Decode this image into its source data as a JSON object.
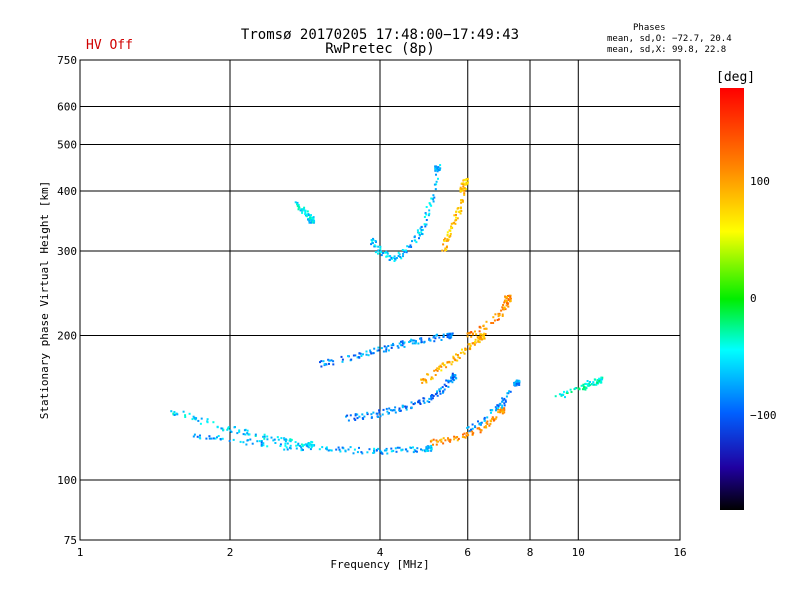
{
  "header": {
    "title_line1": "Tromsø 20170205 17:48:00−17:49:43",
    "title_line2": "RwPretec (8p)",
    "hv_status": "HV Off",
    "hv_color": "#d00000"
  },
  "phases_box": {
    "title": "Phases",
    "line1": "mean, sd,O: −72.7, 20.4",
    "line2": "mean, sd,X:  99.8, 22.8"
  },
  "colorbar": {
    "unit": "[deg]",
    "ticks": [
      "100",
      "0",
      "−100"
    ],
    "tick_values": [
      100,
      0,
      -100
    ],
    "range": [
      -180,
      180
    ],
    "colormap": "rainbow (black → purple → blue → cyan → green → yellow → orange → red)"
  },
  "chart_data": {
    "type": "scatter",
    "title": "Tromsø 20170205 17:48:00−17:49:43",
    "subtitle": "RwPretec (8p)",
    "xlabel": "Frequency [MHz]",
    "ylabel": "Stationary phase Virtual Height [km]",
    "x_scale": "log",
    "y_scale": "log",
    "xlim": [
      1,
      16
    ],
    "ylim": [
      75,
      750
    ],
    "x_ticks": [
      1,
      2,
      4,
      6,
      8,
      10,
      16
    ],
    "x_tick_labels": [
      "1",
      "2",
      "4",
      "6",
      "8",
      "10",
      "16"
    ],
    "y_ticks": [
      75,
      100,
      200,
      300,
      400,
      500,
      600,
      750
    ],
    "y_tick_labels": [
      "75",
      "100",
      "200",
      "300",
      "400",
      "500",
      "600",
      "750"
    ],
    "grid": true,
    "color_variable": "phase [deg]",
    "traces": [
      {
        "name": "",
        "phase": -75,
        "x": [
          1.65,
          2.0,
          2.5,
          3.0,
          3.5,
          4.0,
          4.5,
          5.0
        ],
        "y": [
          125,
          122,
          118,
          117,
          116,
          115,
          116,
          117
        ]
      },
      {
        "name": "",
        "phase": -60,
        "x": [
          1.5,
          1.7,
          2.0,
          2.3,
          2.6,
          2.9
        ],
        "y": [
          140,
          135,
          128,
          124,
          121,
          119
        ]
      },
      {
        "name": "",
        "phase": -90,
        "x": [
          3.4,
          3.8,
          4.2,
          4.6,
          5.0,
          5.3,
          5.6
        ],
        "y": [
          135,
          137,
          140,
          143,
          148,
          155,
          165
        ]
      },
      {
        "name": "",
        "phase": -85,
        "x": [
          3.0,
          3.4,
          3.8,
          4.2,
          4.6,
          5.0,
          5.5
        ],
        "y": [
          175,
          180,
          185,
          190,
          195,
          198,
          200
        ]
      },
      {
        "name": "",
        "phase": -70,
        "x": [
          3.8,
          4.0,
          4.2,
          4.5,
          4.8,
          5.0,
          5.2
        ],
        "y": [
          320,
          300,
          290,
          300,
          330,
          370,
          450
        ]
      },
      {
        "name": "",
        "phase": -55,
        "x": [
          2.7,
          2.8,
          2.9
        ],
        "y": [
          380,
          365,
          350
        ]
      },
      {
        "name": "",
        "phase": 90,
        "x": [
          5.3,
          5.5,
          5.7,
          5.8,
          5.9
        ],
        "y": [
          300,
          330,
          360,
          390,
          420
        ]
      },
      {
        "name": "",
        "phase": 95,
        "x": [
          4.8,
          5.2,
          5.6,
          6.0,
          6.4
        ],
        "y": [
          160,
          170,
          180,
          190,
          200
        ]
      },
      {
        "name": "",
        "phase": 110,
        "x": [
          5.0,
          5.5,
          6.0,
          6.5,
          7.0
        ],
        "y": [
          120,
          122,
          125,
          130,
          140
        ]
      },
      {
        "name": "",
        "phase": 115,
        "x": [
          6.0,
          6.5,
          7.0,
          7.2
        ],
        "y": [
          200,
          210,
          225,
          240
        ]
      },
      {
        "name": "",
        "phase": -80,
        "x": [
          6.0,
          6.5,
          7.0,
          7.5
        ],
        "y": [
          128,
          135,
          145,
          160
        ]
      },
      {
        "name": "",
        "phase": -40,
        "x": [
          9.0,
          10.0,
          10.5,
          11.0
        ],
        "y": [
          150,
          155,
          160,
          162
        ]
      }
    ]
  }
}
